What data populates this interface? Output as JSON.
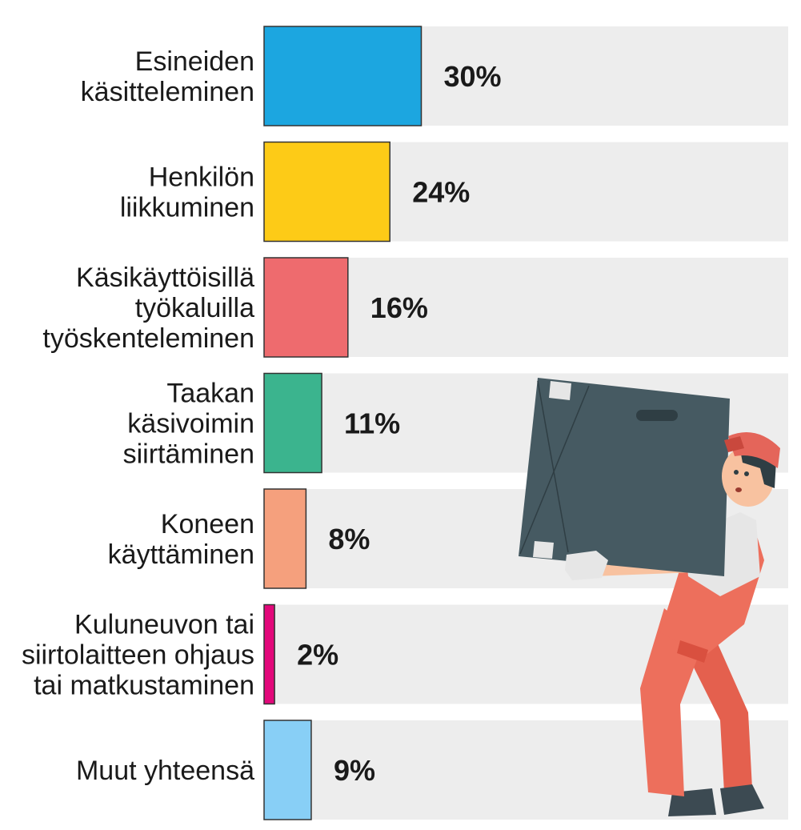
{
  "chart_data": {
    "type": "bar",
    "orientation": "horizontal",
    "categories": [
      [
        "Esineiden",
        "käsitteleminen"
      ],
      [
        "Henkilön",
        "liikkuminen"
      ],
      [
        "Käsikäyttöisillä",
        "työkaluilla",
        "työskenteleminen"
      ],
      [
        "Taakan",
        "käsivoimin",
        "siirtäminen"
      ],
      [
        "Koneen",
        "käyttäminen"
      ],
      [
        "Kuluneuvon tai",
        "siirtolaitteen ohjaus",
        "tai matkustaminen"
      ],
      [
        "Muut yhteensä"
      ]
    ],
    "values": [
      30,
      24,
      16,
      11,
      8,
      2,
      9
    ],
    "value_labels": [
      "30%",
      "24%",
      "16%",
      "11%",
      "8%",
      "2%",
      "9%"
    ],
    "colors": [
      "#1ca6e0",
      "#fdcb17",
      "#ee6b6e",
      "#3bb48e",
      "#f5a07d",
      "#e2087a",
      "#88cff6"
    ],
    "track_color": "#ededed",
    "unit": "%",
    "title": "",
    "xlabel": "",
    "ylabel": ""
  },
  "illustration": {
    "name": "delivery worker carrying a large box",
    "colors": {
      "box": "#465a62",
      "cap": "#e4655a",
      "overalls": "#ed6f5c",
      "shirt": "#e6e6e6",
      "skin": "#f8c2a0",
      "boots": "#3c4a52"
    }
  }
}
